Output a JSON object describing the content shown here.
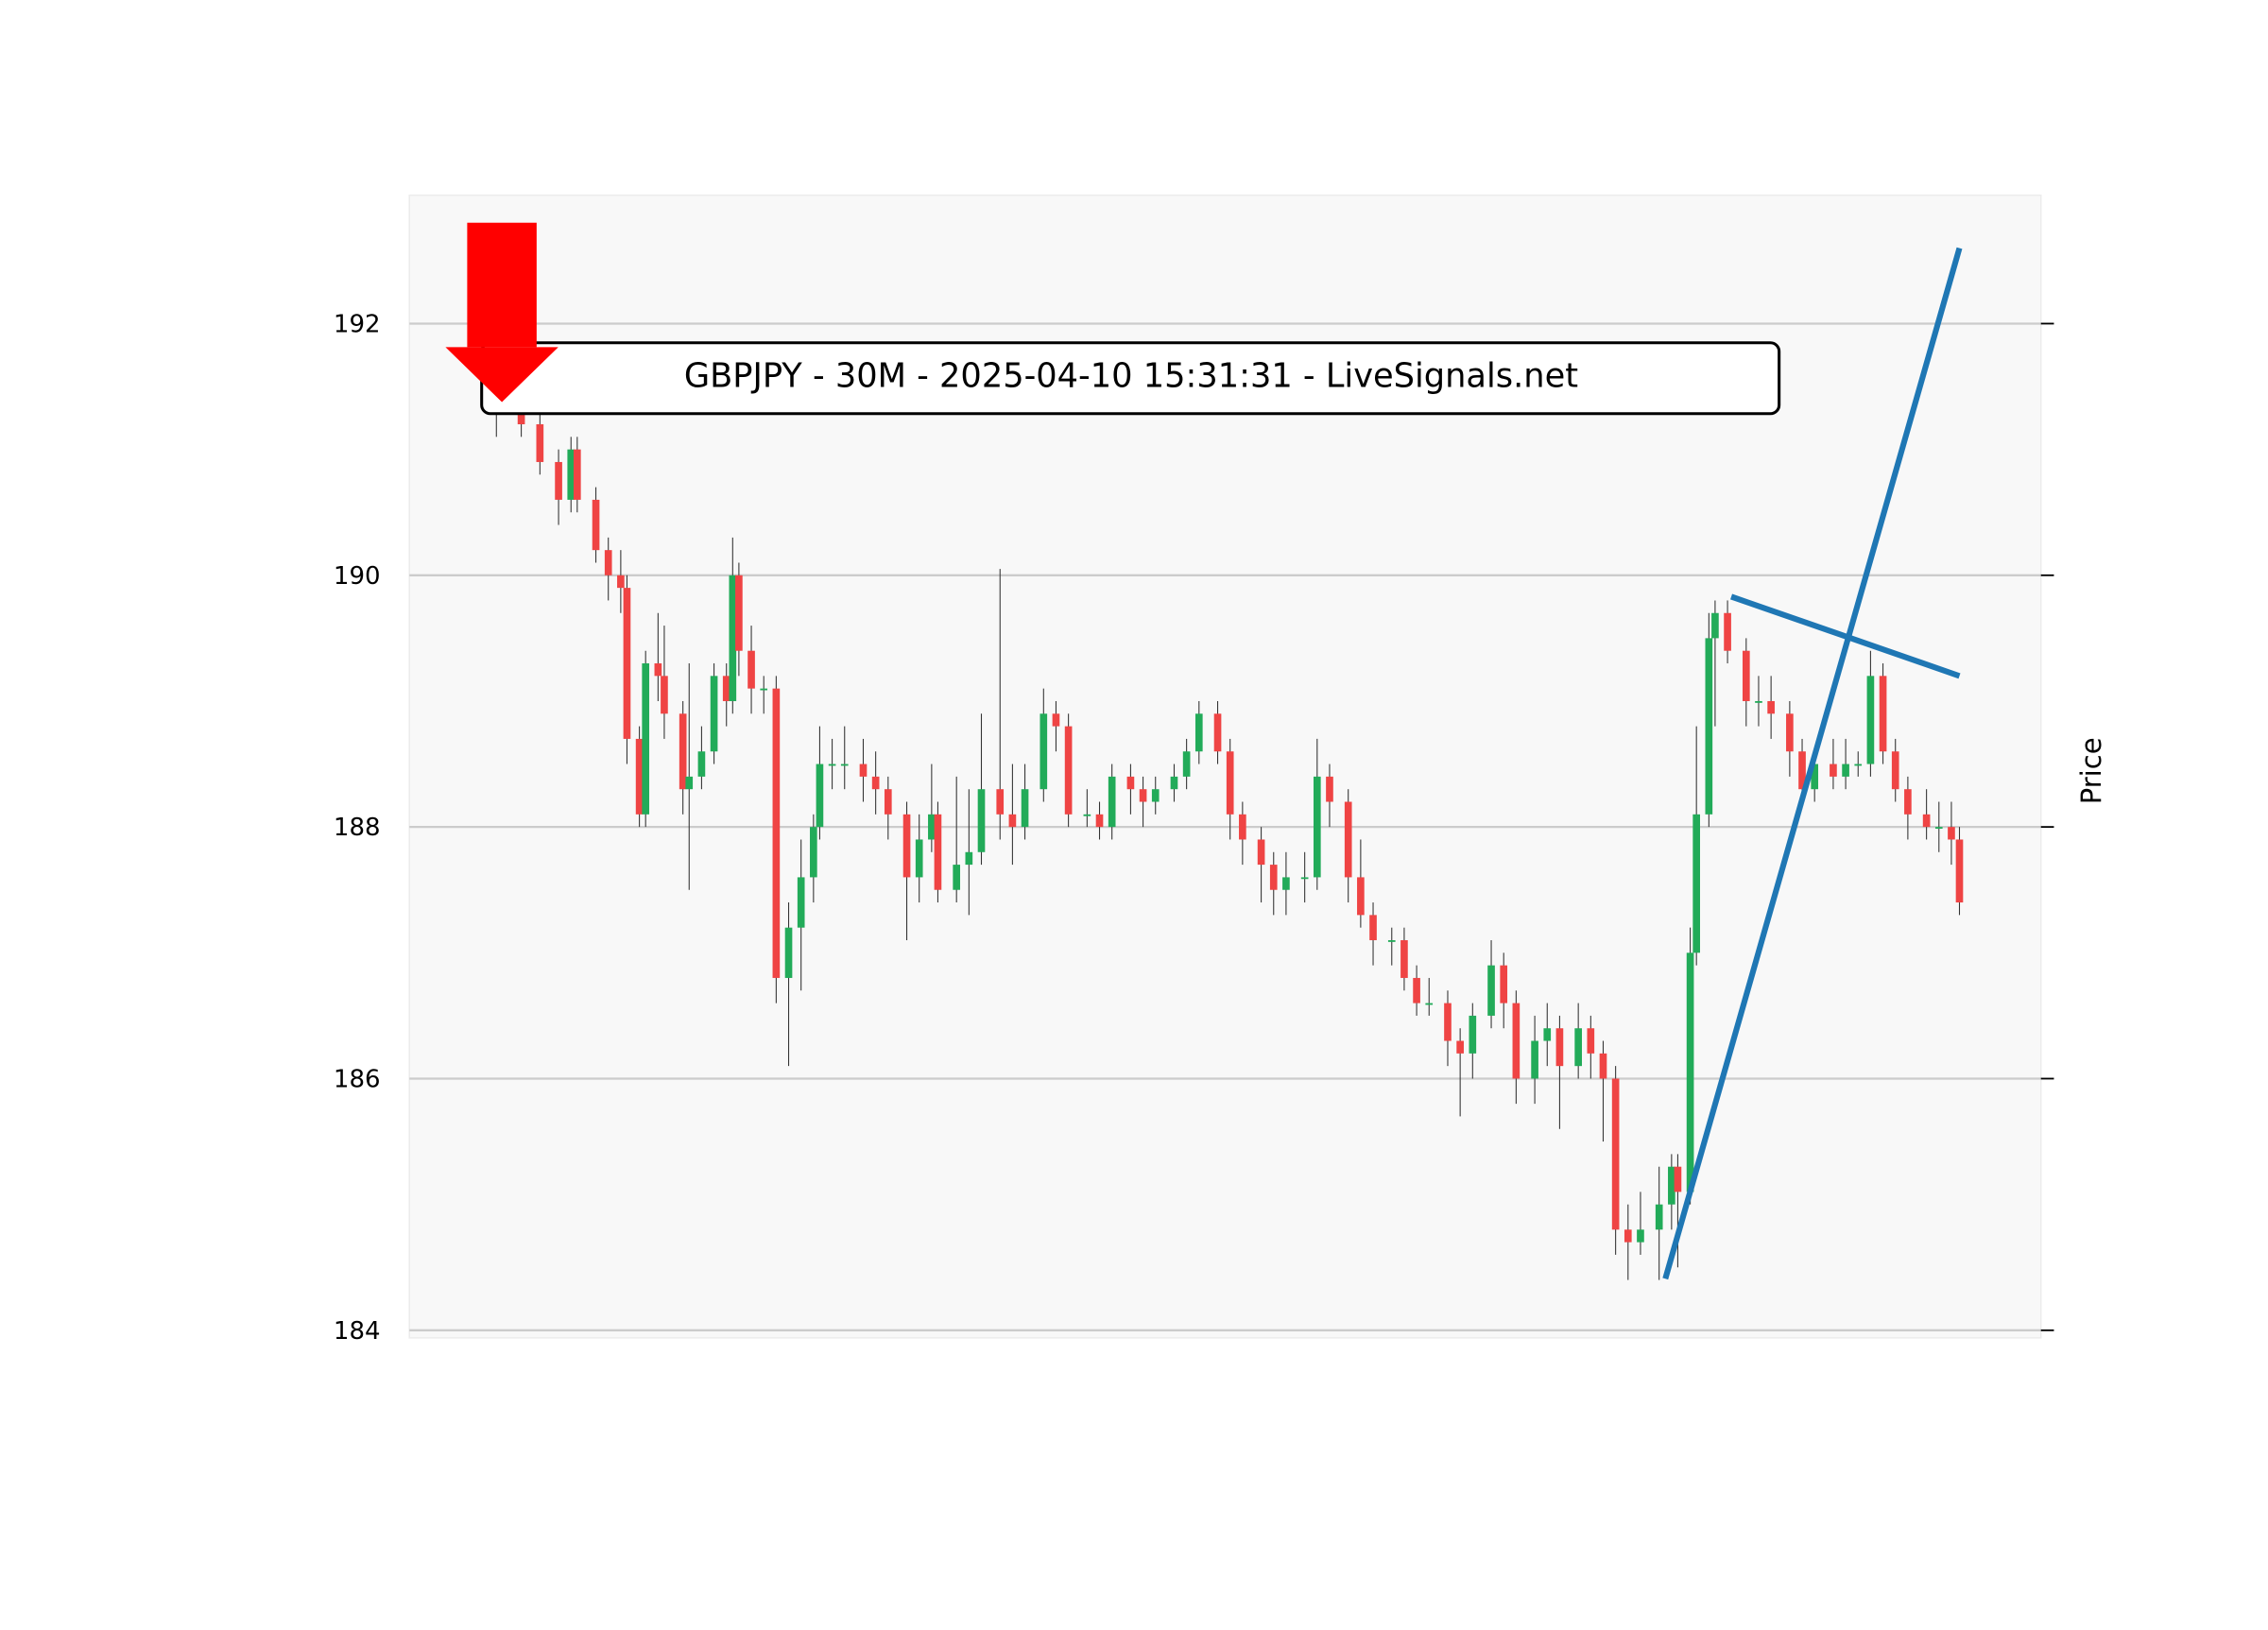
{
  "chart_data": {
    "type": "candlestick",
    "title": "GBPJPY - 30M - 2025-04-10 15:31:31 - LiveSignals.net",
    "y_label": "Price",
    "x": [
      0,
      4,
      7,
      10,
      12,
      13,
      16,
      18,
      20,
      21,
      23,
      24,
      26,
      27,
      30,
      31,
      33,
      35,
      37,
      38,
      39,
      41,
      43,
      45,
      47,
      49,
      51,
      52,
      54,
      56,
      59,
      61,
      63,
      66,
      68,
      70,
      71,
      74,
      76,
      78,
      81,
      83,
      85,
      88,
      90,
      92,
      95,
      97,
      99,
      102,
      104,
      106,
      109,
      111,
      113,
      116,
      118,
      120,
      123,
      125,
      127,
      130,
      132,
      134,
      137,
      139,
      141,
      144,
      146,
      148,
      150,
      153,
      155,
      157,
      160,
      162,
      164,
      167,
      169,
      171,
      174,
      176,
      178,
      180,
      182,
      184,
      187,
      189,
      190,
      192,
      193,
      195,
      196,
      198,
      201,
      203,
      205,
      208,
      210,
      212,
      215,
      217,
      219,
      221,
      223,
      225,
      227,
      230,
      232,
      234,
      235.3
    ],
    "open": [
      191.35,
      191.3,
      191.2,
      190.9,
      190.6,
      191.0,
      190.6,
      190.2,
      190.0,
      189.9,
      188.7,
      188.1,
      189.3,
      189.2,
      188.9,
      188.3,
      188.4,
      188.6,
      189.2,
      189.0,
      190.0,
      189.4,
      189.1,
      189.1,
      186.8,
      187.2,
      187.6,
      188.0,
      188.5,
      188.5,
      188.5,
      188.4,
      188.3,
      188.1,
      187.6,
      187.9,
      188.1,
      187.5,
      187.7,
      187.8,
      188.3,
      188.1,
      188.0,
      188.3,
      188.9,
      188.8,
      188.1,
      188.1,
      188.0,
      188.4,
      188.3,
      188.2,
      188.3,
      188.4,
      188.6,
      188.9,
      188.6,
      188.1,
      187.9,
      187.7,
      187.5,
      187.6,
      187.6,
      188.4,
      188.2,
      187.6,
      187.3,
      187.1,
      187.1,
      186.8,
      186.6,
      186.6,
      186.3,
      186.2,
      186.5,
      186.9,
      186.6,
      186.0,
      186.3,
      186.4,
      186.1,
      186.4,
      186.2,
      186.0,
      184.8,
      184.7,
      184.8,
      185.0,
      185.3,
      185.1,
      187.0,
      188.1,
      189.5,
      189.7,
      189.4,
      189.0,
      189.0,
      188.9,
      188.6,
      188.3,
      188.5,
      188.4,
      188.5,
      188.5,
      189.2,
      188.6,
      188.3,
      188.1,
      188.0,
      188.0,
      187.9
    ],
    "high": [
      191.45,
      191.4,
      191.3,
      191.0,
      191.1,
      191.1,
      190.7,
      190.3,
      190.2,
      190.0,
      188.8,
      189.4,
      189.7,
      189.6,
      189.0,
      189.3,
      188.8,
      189.3,
      189.3,
      190.3,
      190.1,
      189.6,
      189.2,
      189.2,
      187.4,
      187.9,
      188.1,
      188.8,
      188.7,
      188.8,
      188.7,
      188.6,
      188.4,
      188.2,
      188.1,
      188.5,
      188.2,
      188.4,
      188.3,
      188.9,
      190.05,
      188.5,
      188.5,
      189.1,
      189.0,
      188.9,
      188.3,
      188.2,
      188.5,
      188.5,
      188.4,
      188.4,
      188.5,
      188.7,
      189.0,
      189.0,
      188.7,
      188.2,
      188.0,
      187.8,
      187.8,
      187.8,
      188.7,
      188.5,
      188.3,
      187.9,
      187.4,
      187.2,
      187.2,
      186.9,
      186.8,
      186.7,
      186.4,
      186.6,
      187.1,
      187.0,
      186.7,
      186.5,
      186.6,
      186.5,
      186.6,
      186.5,
      186.3,
      186.1,
      185.0,
      185.1,
      185.3,
      185.4,
      185.4,
      187.2,
      188.8,
      189.7,
      189.8,
      189.8,
      189.5,
      189.2,
      189.2,
      189.0,
      188.7,
      188.6,
      188.7,
      188.7,
      188.6,
      189.4,
      189.3,
      188.7,
      188.4,
      188.3,
      188.2,
      188.2,
      188.0
    ],
    "low": [
      191.1,
      191.1,
      190.8,
      190.4,
      190.5,
      190.5,
      190.1,
      189.8,
      189.7,
      188.5,
      188.0,
      188.0,
      189.0,
      188.7,
      188.1,
      187.5,
      188.3,
      188.5,
      188.8,
      188.9,
      189.2,
      188.9,
      188.9,
      186.6,
      186.1,
      186.7,
      187.4,
      187.9,
      188.3,
      188.3,
      188.2,
      188.1,
      187.9,
      187.1,
      187.4,
      187.8,
      187.4,
      187.4,
      187.3,
      187.7,
      187.9,
      187.7,
      187.9,
      188.2,
      188.6,
      188.0,
      188.0,
      187.9,
      187.9,
      188.1,
      188.0,
      188.1,
      188.2,
      188.3,
      188.5,
      188.5,
      187.9,
      187.7,
      187.4,
      187.3,
      187.3,
      187.4,
      187.5,
      188.0,
      187.4,
      187.2,
      186.9,
      186.9,
      186.7,
      186.5,
      186.5,
      186.1,
      185.7,
      186.0,
      186.4,
      186.4,
      185.8,
      185.8,
      186.1,
      185.6,
      186.0,
      186.0,
      185.5,
      184.6,
      184.4,
      184.6,
      184.4,
      184.8,
      184.5,
      185.0,
      186.9,
      188.0,
      188.8,
      189.3,
      188.8,
      188.8,
      188.7,
      188.4,
      188.2,
      188.2,
      188.3,
      188.3,
      188.4,
      188.4,
      188.5,
      188.2,
      187.9,
      187.9,
      187.8,
      187.7,
      187.3
    ],
    "close": [
      191.3,
      191.2,
      190.9,
      190.6,
      191.0,
      190.6,
      190.2,
      190.0,
      189.9,
      188.7,
      188.1,
      189.3,
      189.2,
      188.9,
      188.3,
      188.4,
      188.6,
      189.2,
      189.0,
      190.0,
      189.4,
      189.1,
      189.1,
      186.8,
      187.2,
      187.6,
      188.0,
      188.5,
      188.5,
      188.5,
      188.4,
      188.3,
      188.1,
      187.6,
      187.9,
      188.1,
      187.5,
      187.7,
      187.8,
      188.3,
      188.1,
      188.0,
      188.3,
      188.9,
      188.8,
      188.1,
      188.1,
      188.0,
      188.4,
      188.3,
      188.2,
      188.3,
      188.4,
      188.6,
      188.9,
      188.6,
      188.1,
      187.9,
      187.7,
      187.5,
      187.6,
      187.6,
      188.4,
      188.2,
      187.6,
      187.3,
      187.1,
      187.1,
      186.8,
      186.6,
      186.6,
      186.3,
      186.2,
      186.5,
      186.9,
      186.6,
      186.0,
      186.3,
      186.4,
      186.1,
      186.4,
      186.2,
      186.0,
      184.8,
      184.7,
      184.8,
      185.0,
      185.3,
      185.1,
      187.0,
      188.1,
      189.5,
      189.7,
      189.4,
      189.0,
      189.0,
      188.9,
      188.6,
      188.3,
      188.5,
      188.4,
      188.5,
      188.5,
      189.2,
      188.6,
      188.3,
      188.1,
      188.0,
      188.0,
      187.9,
      187.4
    ],
    "up_color": "#22ab59",
    "down_color": "#ef4444",
    "trendlines": [
      {
        "x": [
          188,
          235.3
        ],
        "y": [
          184.41,
          192.6
        ],
        "color": "#1f77b4"
      },
      {
        "x": [
          198.6,
          235.3
        ],
        "y": [
          189.83,
          189.2
        ],
        "color": "#1f77b4"
      }
    ],
    "xlim": [
      -14,
      248.4
    ],
    "ylim": [
      183.94,
      193.02
    ],
    "yticks": [
      184,
      186,
      188,
      190,
      192
    ],
    "grid": true
  }
}
